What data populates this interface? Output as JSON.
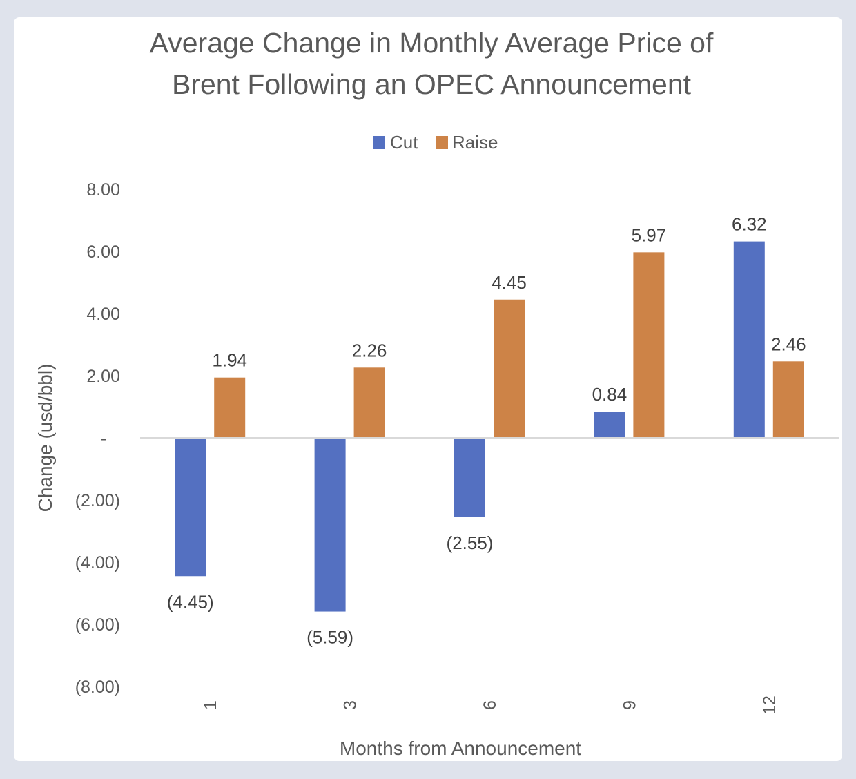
{
  "chart_data": {
    "type": "bar",
    "title": "Average Change in Monthly Average Price of Brent Following an OPEC Announcement",
    "title_lines": [
      "Average Change in Monthly Average Price of",
      "Brent Following an OPEC Announcement"
    ],
    "xlabel": "Months from Announcement",
    "ylabel": "Change (usd/bbl)",
    "categories": [
      "1",
      "3",
      "6",
      "9",
      "12"
    ],
    "series": [
      {
        "name": "Cut",
        "color": "#5470c1",
        "values": [
          -4.45,
          -5.59,
          -2.55,
          0.84,
          6.32
        ],
        "labels": [
          "(4.45)",
          "(5.59)",
          "(2.55)",
          "0.84",
          "6.32"
        ]
      },
      {
        "name": "Raise",
        "color": "#cd8347",
        "values": [
          1.94,
          2.26,
          4.45,
          5.97,
          2.46
        ],
        "labels": [
          "1.94",
          "2.26",
          "4.45",
          "5.97",
          "2.46"
        ]
      }
    ],
    "ylim": [
      -8,
      8
    ],
    "yticks": [
      8,
      6,
      4,
      2,
      0,
      -2,
      -4,
      -6,
      -8
    ],
    "ytick_labels": [
      "8.00",
      "6.00",
      "4.00",
      "2.00",
      "-",
      "(2.00)",
      "(4.00)",
      "(6.00)",
      "(8.00)"
    ],
    "legend_position": "top-center",
    "grid": false
  }
}
